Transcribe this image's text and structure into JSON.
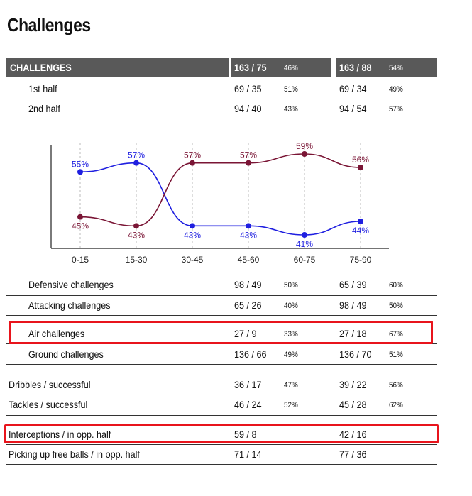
{
  "title": "Challenges",
  "header": {
    "label": "CHALLENGES",
    "v1": "163 / 75",
    "p1": "46%",
    "v2": "163 / 88",
    "p2": "54%"
  },
  "rows_top": [
    {
      "label": "1st half",
      "v1": "69 / 35",
      "p1": "51%",
      "v2": "69 / 34",
      "p2": "49%"
    },
    {
      "label": "2nd half",
      "v1": "94 / 40",
      "p1": "43%",
      "v2": "94 / 54",
      "p2": "57%"
    }
  ],
  "chart_data": {
    "type": "line",
    "categories": [
      "0-15",
      "15-30",
      "30-45",
      "45-60",
      "60-75",
      "75-90"
    ],
    "series": [
      {
        "values": [
          55,
          57,
          43,
          43,
          41,
          44
        ],
        "labels": [
          "55%",
          "57%",
          "43%",
          "43%",
          "41%",
          "44%"
        ],
        "color": "#1f1fe0"
      },
      {
        "values": [
          45,
          43,
          57,
          57,
          59,
          56
        ],
        "labels": [
          "45%",
          "43%",
          "57%",
          "57%",
          "59%",
          "56%"
        ],
        "color": "#7a1535"
      }
    ],
    "ylim": [
      38,
      62
    ]
  },
  "rows_bottom": [
    {
      "label": "Defensive challenges",
      "v1": "98 / 49",
      "p1": "50%",
      "v2": "65 / 39",
      "p2": "60%"
    },
    {
      "label": "Attacking challenges",
      "v1": "65 / 26",
      "p1": "40%",
      "v2": "98 / 49",
      "p2": "50%"
    },
    {
      "label": "Air challenges",
      "v1": "27 / 9",
      "p1": "33%",
      "v2": "27 / 18",
      "p2": "67%"
    },
    {
      "label": "Ground challenges",
      "v1": "136 / 66",
      "p1": "49%",
      "v2": "136 / 70",
      "p2": "51%"
    },
    {
      "label": "Dribbles / successful",
      "v1": "36 / 17",
      "p1": "47%",
      "v2": "39 / 22",
      "p2": "56%"
    },
    {
      "label": "Tackles / successful",
      "v1": "46 / 24",
      "p1": "52%",
      "v2": "45 / 28",
      "p2": "62%"
    },
    {
      "label": "Interceptions / in opp. half",
      "v1": "59 / 8",
      "p1": "",
      "v2": "42 / 16",
      "p2": ""
    },
    {
      "label": "Picking up free balls / in opp. half",
      "v1": "71 / 14",
      "p1": "",
      "v2": "77 / 36",
      "p2": ""
    }
  ]
}
